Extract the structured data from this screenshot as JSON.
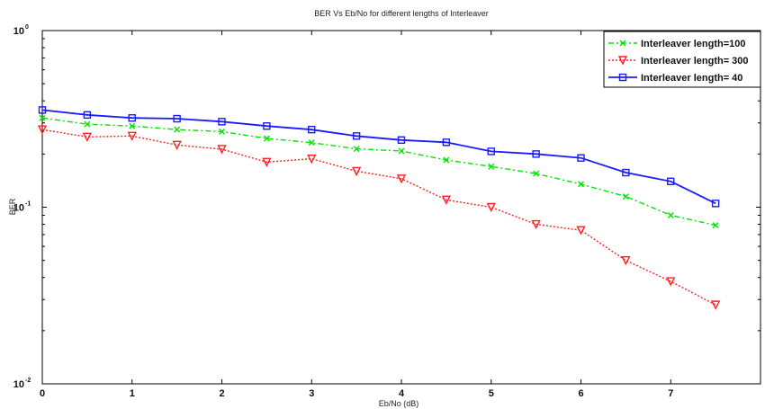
{
  "chart_data": {
    "type": "line",
    "title": "BER Vs Eb/No for different lengths of Interleaver",
    "xlabel": "Eb/No (dB)",
    "ylabel": "BER",
    "xlim": [
      0,
      8
    ],
    "ylim": [
      0.01,
      1
    ],
    "yscale": "log",
    "x_ticks": [
      "0",
      "1",
      "2",
      "3",
      "4",
      "5",
      "6",
      "7"
    ],
    "y_ticks": [
      {
        "base": "10",
        "exp": "0",
        "value": 1
      },
      {
        "base": "10",
        "exp": "-1",
        "value": 0.1
      },
      {
        "base": "10",
        "exp": "-2",
        "value": 0.01
      }
    ],
    "grid": false,
    "legend_position": "top-right",
    "x": [
      0,
      0.5,
      1,
      1.5,
      2,
      2.5,
      3,
      3.5,
      4,
      4.5,
      5,
      5.5,
      6,
      6.5,
      7,
      7.5
    ],
    "series": [
      {
        "name": "Interleaver length=100",
        "color": "#00e600",
        "line_style": "dashdot",
        "marker": "x",
        "values": [
          0.32,
          0.295,
          0.288,
          0.275,
          0.268,
          0.245,
          0.232,
          0.214,
          0.208,
          0.185,
          0.17,
          0.155,
          0.135,
          0.115,
          0.09,
          0.079
        ]
      },
      {
        "name": "Interleaver length= 300",
        "color": "#ff2020",
        "line_style": "dotted",
        "marker": "triangle-down",
        "values": [
          0.275,
          0.25,
          0.253,
          0.225,
          0.213,
          0.18,
          0.188,
          0.16,
          0.145,
          0.11,
          0.1,
          0.08,
          0.074,
          0.05,
          0.038,
          0.028
        ]
      },
      {
        "name": "Interleaver length= 40",
        "color": "#1a1aff",
        "line_style": "solid",
        "marker": "square",
        "values": [
          0.355,
          0.333,
          0.32,
          0.317,
          0.305,
          0.288,
          0.275,
          0.253,
          0.24,
          0.233,
          0.207,
          0.2,
          0.19,
          0.157,
          0.14,
          0.105
        ]
      }
    ]
  }
}
